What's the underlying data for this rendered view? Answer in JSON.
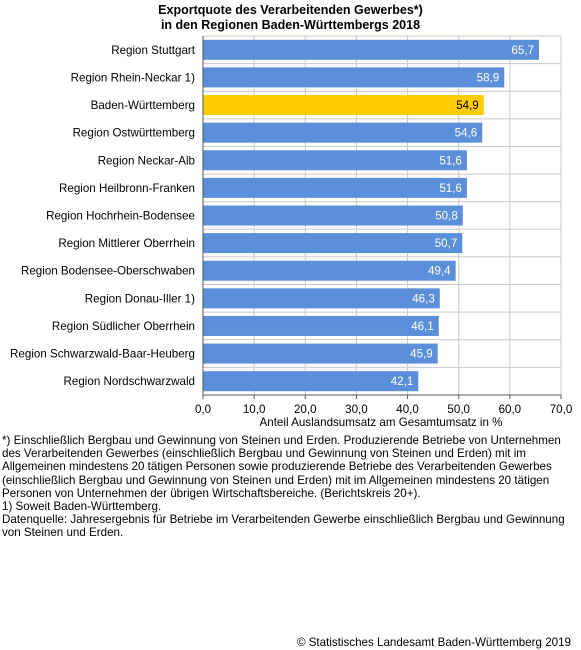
{
  "title": {
    "line1": "Exportquote des Verarbeitenden Gewerbes*)",
    "line2": "in den Regionen Baden-Württembergs 2018"
  },
  "chart_data": {
    "type": "bar",
    "orientation": "horizontal",
    "categories": [
      "Region Stuttgart",
      "Region Rhein-Neckar 1)",
      "Baden-Württemberg",
      "Region Ostwürttemberg",
      "Region Neckar-Alb",
      "Region Heilbronn-Franken",
      "Region Hochrhein-Bodensee",
      "Region Mittlerer Oberrhein",
      "Region Bodensee-Oberschwaben",
      "Region Donau-Iller 1)",
      "Region Südlicher Oberrhein",
      "Region Schwarzwald-Baar-Heuberg",
      "Region Nordschwarzwald"
    ],
    "values": [
      65.7,
      58.9,
      54.9,
      54.6,
      51.6,
      51.6,
      50.8,
      50.7,
      49.4,
      46.3,
      46.1,
      45.9,
      42.1
    ],
    "value_labels": [
      "65,7",
      "58,9",
      "54,9",
      "54,6",
      "51,6",
      "51,6",
      "50,8",
      "50,7",
      "49,4",
      "46,3",
      "46,1",
      "45,9",
      "42,1"
    ],
    "highlight": "Baden-Württemberg",
    "xlim": [
      0,
      70
    ],
    "xticks": [
      "0,0",
      "10,0",
      "20,0",
      "30,0",
      "40,0",
      "50,0",
      "60,0",
      "70,0"
    ],
    "xlabel": "Anteil Auslandsumsatz am Gesamtumsatz in %",
    "ylabel": "",
    "grid": true,
    "colors": {
      "bar": "#5b8fd9",
      "highlight": "#ffcc00",
      "grid": "#c8c8c8"
    }
  },
  "footnotes": {
    "note1": "*) Einschließlich Bergbau und Gewinnung von Steinen und Erden. Produzierende Betriebe von Unternehmen des Verarbeitenden Gewerbes (einschließlich Bergbau und Gewinnung von Steinen und Erden) mit im Allgemeinen mindestens 20 tätigen Personen sowie produzierende Betriebe des Verarbeitenden Gewerbes (einschließlich Bergbau und Gewinnung von Steinen und Erden) mit im Allgemeinen mindestens 20 tätigen Personen von Unternehmen der übrigen Wirtschaftsbereiche. (Berichtskreis 20+).",
    "note2": "1) Soweit Baden-Württemberg.",
    "source": "Datenquelle: Jahresergebnis für Betriebe im Verarbeitenden Gewerbe einschließlich Bergbau und Gewinnung von Steinen und Erden."
  },
  "copyright": "© Statistisches Landesamt Baden-Württemberg 2019"
}
